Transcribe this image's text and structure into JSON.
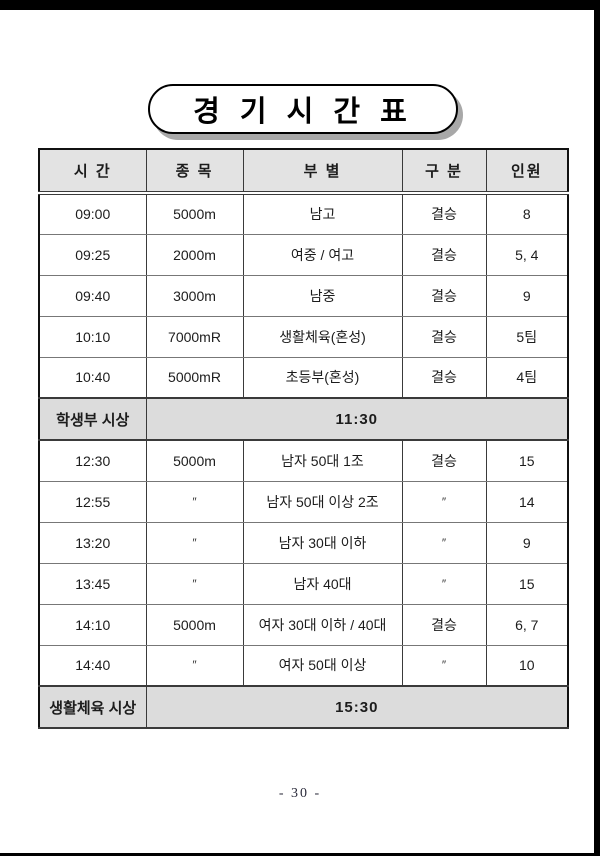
{
  "page": {
    "title": "경 기 시 간 표",
    "page_number": "- 30 -"
  },
  "table": {
    "headers": [
      "시 간",
      "종 목",
      "부 별",
      "구 분",
      "인원"
    ],
    "column_keys": [
      "time",
      "event",
      "division",
      "category",
      "count"
    ],
    "header_bg": "#e3e3e3",
    "section_bg": "#dcdcdc",
    "rows": [
      {
        "type": "data",
        "time": "09:00",
        "event": "5000m",
        "division": "남고",
        "category": "결승",
        "count": "8"
      },
      {
        "type": "data",
        "time": "09:25",
        "event": "2000m",
        "division": "여중 / 여고",
        "category": "결승",
        "count": "5, 4"
      },
      {
        "type": "data",
        "time": "09:40",
        "event": "3000m",
        "division": "남중",
        "category": "결승",
        "count": "9"
      },
      {
        "type": "data",
        "time": "10:10",
        "event": "7000mR",
        "division": "생활체육(혼성)",
        "category": "결승",
        "count": "5팀"
      },
      {
        "type": "data",
        "time": "10:40",
        "event": "5000mR",
        "division": "초등부(혼성)",
        "category": "결승",
        "count": "4팀"
      },
      {
        "type": "section",
        "label": "학생부 시상",
        "time": "11:30"
      },
      {
        "type": "data",
        "time": "12:30",
        "event": "5000m",
        "division": "남자 50대 1조",
        "category": "결승",
        "count": "15"
      },
      {
        "type": "data",
        "time": "12:55",
        "event": "″",
        "division": "남자 50대 이상 2조",
        "category": "″",
        "count": "14"
      },
      {
        "type": "data",
        "time": "13:20",
        "event": "″",
        "division": "남자 30대 이하",
        "category": "″",
        "count": "9"
      },
      {
        "type": "data",
        "time": "13:45",
        "event": "″",
        "division": "남자 40대",
        "category": "″",
        "count": "15"
      },
      {
        "type": "data",
        "time": "14:10",
        "event": "5000m",
        "division": "여자 30대 이하 / 40대",
        "category": "결승",
        "count": "6, 7"
      },
      {
        "type": "data",
        "time": "14:40",
        "event": "″",
        "division": "여자 50대 이상",
        "category": "″",
        "count": "10"
      },
      {
        "type": "section",
        "label": "생활체육 시상",
        "time": "15:30"
      }
    ]
  }
}
